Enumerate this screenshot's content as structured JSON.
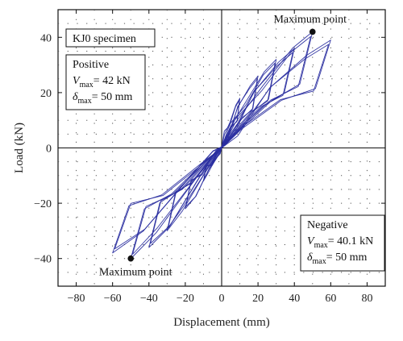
{
  "chart_data": {
    "type": "line",
    "title": "",
    "xlabel": "Displacement (mm)",
    "ylabel": "Load (kN)",
    "xlim": [
      -90,
      90
    ],
    "ylim": [
      -50,
      50
    ],
    "xticks": [
      -80,
      -60,
      -40,
      -20,
      0,
      20,
      40,
      60,
      80
    ],
    "yticks": [
      -40,
      -20,
      0,
      20,
      40
    ],
    "xtick_labels": [
      "−80",
      "−60",
      "−40",
      "−20",
      "0",
      "20",
      "40",
      "60",
      "80"
    ],
    "ytick_labels": [
      "−40",
      "−20",
      "0",
      "20",
      "40"
    ],
    "grid": true,
    "legend": {
      "label": "KJ0 specimen",
      "placement": "top-left"
    },
    "series": [
      {
        "color": "#2a2ea0",
        "peaks": [
          {
            "x": 10,
            "y": 18
          },
          {
            "x": 20,
            "y": 26
          },
          {
            "x": 30,
            "y": 32
          },
          {
            "x": 40,
            "y": 36
          },
          {
            "x": 50,
            "y": 42
          },
          {
            "x": 60,
            "y": 39
          },
          {
            "x": -10,
            "y": -12
          },
          {
            "x": -20,
            "y": -22
          },
          {
            "x": -30,
            "y": -30
          },
          {
            "x": -40,
            "y": -36
          },
          {
            "x": -50,
            "y": -40.1
          },
          {
            "x": -60,
            "y": -38
          }
        ]
      }
    ],
    "annotations": {
      "positive_box": {
        "heading": "Positive",
        "vmax_symbol": "V",
        "vmax_sub": "max",
        "vmax_value": "= 42 kN",
        "dmax_symbol": "δ",
        "dmax_sub": "max",
        "dmax_value": "= 50 mm"
      },
      "negative_box": {
        "heading": "Negative",
        "vmax_symbol": "V",
        "vmax_sub": "max",
        "vmax_value": "= 40.1 kN",
        "dmax_symbol": "δ",
        "dmax_sub": "max",
        "dmax_value": "= 50 mm"
      },
      "max_point_pos": {
        "label": "Maximum point",
        "x": 50,
        "y": 42
      },
      "max_point_neg": {
        "label": "Maximum point",
        "x": -50,
        "y": -40
      }
    }
  }
}
